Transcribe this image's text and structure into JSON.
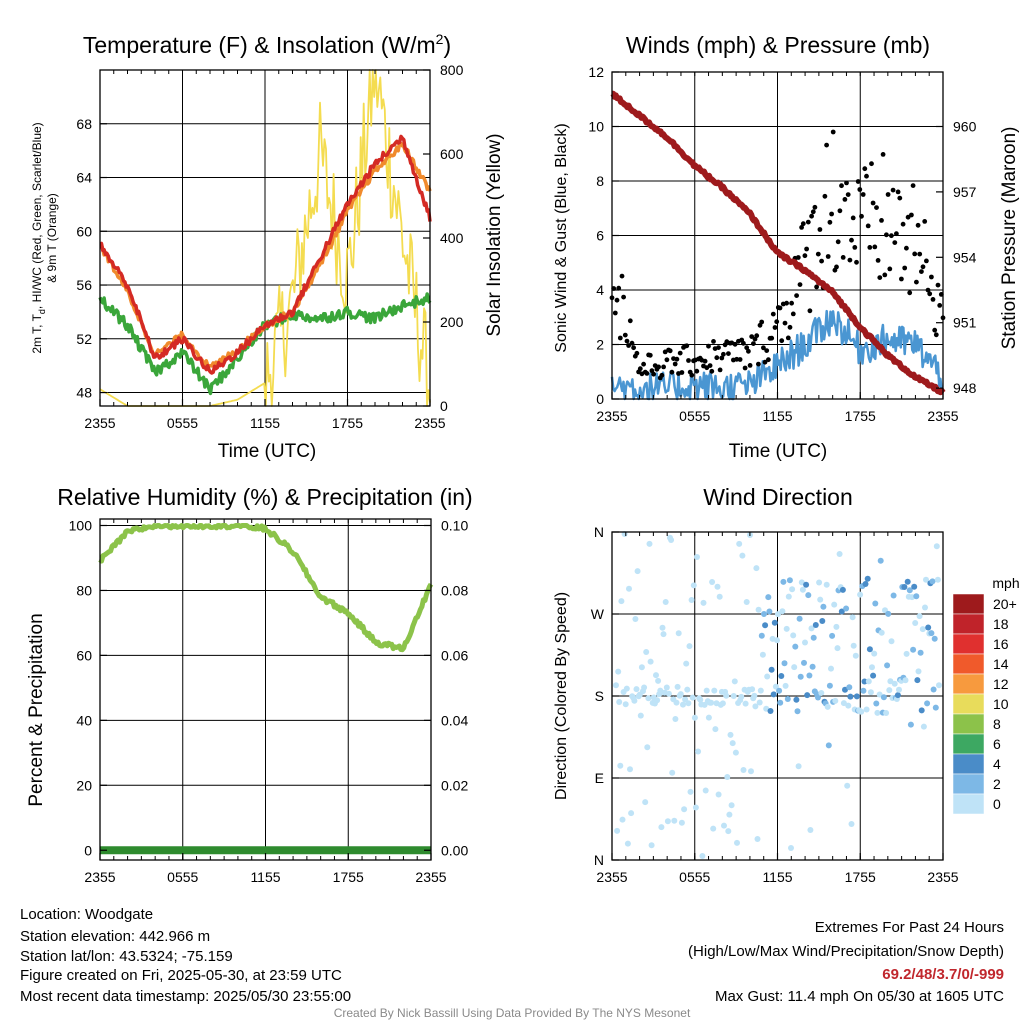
{
  "x_ticks": [
    "2355",
    "0555",
    "1155",
    "1755",
    "2355"
  ],
  "panel_temp": {
    "title": "Temperature (F) & Insolation (W/m",
    "title_sup": "2",
    "title_close": ")",
    "ylabel_line1": "2m T, T",
    "ylabel_sub": "d",
    "ylabel_line1b": ", HI/WC (Red, Green, Scarlet/Blue)",
    "ylabel_line2": "& 9m T (Orange)",
    "y2label": "Solar Insolation (Yellow)",
    "xlabel": "Time (UTC)",
    "y_ticks": [
      "48",
      "52",
      "56",
      "60",
      "64",
      "68"
    ],
    "y2_ticks": [
      "0",
      "200",
      "400",
      "600",
      "800"
    ]
  },
  "panel_wind": {
    "title": "Winds (mph) & Pressure (mb)",
    "ylabel": "Sonic Wind & Gust (Blue, Black)",
    "y2label": "Station Pressure (Maroon)",
    "xlabel": "Time (UTC)",
    "y_ticks": [
      "0",
      "2",
      "4",
      "6",
      "8",
      "10",
      "12"
    ],
    "y2_ticks": [
      "948",
      "951",
      "954",
      "957",
      "960"
    ]
  },
  "panel_rh": {
    "title": "Relative Humidity (%) & Precipitation (in)",
    "ylabel": "Percent & Precipitation",
    "y_ticks": [
      "0",
      "20",
      "40",
      "60",
      "80",
      "100"
    ],
    "y2_ticks": [
      "0.00",
      "0.02",
      "0.04",
      "0.06",
      "0.08",
      "0.10"
    ]
  },
  "panel_dir": {
    "title": "Wind Direction",
    "ylabel": "Direction (Colored By Speed)",
    "y_ticks": [
      "N",
      "E",
      "S",
      "W",
      "N"
    ],
    "legend_title": "mph",
    "legend_labels": [
      "20+",
      "18",
      "16",
      "14",
      "12",
      "10",
      "8",
      "6",
      "4",
      "2",
      "0"
    ],
    "legend_colors": [
      "#9e1a1c",
      "#c0232a",
      "#e0302f",
      "#f05a2b",
      "#f79a3e",
      "#e8dc5b",
      "#8cc24a",
      "#3da862",
      "#4a8cc8",
      "#7db8e6",
      "#bfe3f7"
    ]
  },
  "colors": {
    "temp": "#d42a24",
    "temp_9m": "#f08a2c",
    "dewpoint": "#3aa63a",
    "solar": "#f4dc50",
    "wind": "#4a96d2",
    "gust": "#000000",
    "pressure": "#9e1a1c",
    "rh": "#8cc34a",
    "precip": "#2e8b2e"
  },
  "chart_data": [
    {
      "type": "line",
      "title": "Temperature (F) & Insolation (W/m2)",
      "xlabel": "Time (UTC)",
      "ylabel": "2m T, Td, HI/WC (Red, Green, Scarlet/Blue) & 9m T (Orange)",
      "y2label": "Solar Insolation (Yellow)",
      "ylim": [
        47,
        72
      ],
      "y2lim": [
        0,
        800
      ],
      "x": [
        "2355",
        "0155",
        "0355",
        "0555",
        "0755",
        "0955",
        "1155",
        "1355",
        "1555",
        "1755",
        "1955",
        "2155",
        "2355"
      ],
      "series": [
        {
          "name": "2m T",
          "values": [
            59,
            56,
            50.5,
            52,
            49.5,
            51,
            53,
            54,
            58,
            62,
            65,
            67,
            61
          ]
        },
        {
          "name": "9m T",
          "values": [
            59,
            55.5,
            50.8,
            52.3,
            49.8,
            51.2,
            53,
            54,
            57.5,
            61.5,
            64.5,
            66.5,
            63
          ]
        },
        {
          "name": "Td",
          "values": [
            55,
            53,
            49.5,
            51,
            48.2,
            50.5,
            53,
            53.8,
            53.5,
            54,
            53.5,
            54.5,
            55
          ]
        },
        {
          "name": "Solar Insolation",
          "axis": "right",
          "values": [
            40,
            0,
            0,
            0,
            0,
            15,
            55,
            250,
            600,
            300,
            800,
            400,
            40
          ]
        }
      ]
    },
    {
      "type": "line",
      "title": "Winds (mph) & Pressure (mb)",
      "xlabel": "Time (UTC)",
      "ylabel": "Sonic Wind & Gust (Blue, Black)",
      "y2label": "Station Pressure (Maroon)",
      "ylim": [
        0,
        12
      ],
      "y2lim": [
        947.5,
        962.5
      ],
      "x": [
        "2355",
        "0155",
        "0355",
        "0555",
        "0755",
        "0955",
        "1155",
        "1355",
        "1555",
        "1755",
        "1955",
        "2155",
        "2355"
      ],
      "series": [
        {
          "name": "Sonic Wind",
          "values": [
            0.5,
            0.4,
            0.4,
            0.5,
            0.4,
            0.5,
            1.2,
            2.0,
            3.0,
            1.8,
            2.2,
            2.0,
            0.8
          ]
        },
        {
          "name": "Gust",
          "values": [
            4.5,
            1.0,
            1.2,
            1.3,
            1.5,
            1.5,
            2.5,
            4.5,
            7.0,
            5.5,
            6.0,
            5.0,
            3.0
          ]
        },
        {
          "name": "Station Pressure",
          "axis": "right",
          "values": [
            961.5,
            960.5,
            959.5,
            958.2,
            957.2,
            956.0,
            954.2,
            953.4,
            952.4,
            950.8,
            949.5,
            948.5,
            947.8
          ]
        }
      ]
    },
    {
      "type": "line",
      "title": "Relative Humidity (%) & Precipitation (in)",
      "ylabel": "Percent & Precipitation",
      "ylim": [
        0,
        100
      ],
      "y2lim": [
        0,
        0.1
      ],
      "x": [
        "2355",
        "0155",
        "0355",
        "0555",
        "0755",
        "0955",
        "1155",
        "1355",
        "1555",
        "1755",
        "1955",
        "2155",
        "2355"
      ],
      "series": [
        {
          "name": "Relative Humidity",
          "values": [
            89,
            98,
            100,
            100,
            100,
            100,
            99,
            92,
            78,
            73,
            64,
            62,
            82
          ]
        },
        {
          "name": "Precipitation",
          "axis": "right",
          "values": [
            0,
            0,
            0,
            0,
            0,
            0,
            0,
            0,
            0,
            0,
            0,
            0,
            0
          ]
        }
      ]
    },
    {
      "type": "scatter",
      "title": "Wind Direction",
      "ylabel": "Direction (Colored By Speed)",
      "y_categories": [
        "N",
        "E",
        "S",
        "W",
        "N"
      ],
      "ylim": [
        0,
        360
      ],
      "x_ticks": [
        "2355",
        "0555",
        "1155",
        "1755",
        "2355"
      ],
      "legend_title": "mph",
      "legend": [
        "20+",
        "18",
        "16",
        "14",
        "12",
        "10",
        "8",
        "6",
        "4",
        "2",
        "0"
      ],
      "points_summary": [
        {
          "x": "2355-0555",
          "direction_range": [
            0,
            360
          ],
          "speed": "0-2"
        },
        {
          "x": "0555-1155",
          "direction_range": [
            0,
            360
          ],
          "speed": "0-2"
        },
        {
          "x": "1155-1755",
          "direction_range": [
            150,
            300
          ],
          "speed": "2-4"
        },
        {
          "x": "1755-2355",
          "direction_range": [
            150,
            320
          ],
          "speed": "2-4"
        }
      ]
    }
  ],
  "footer": {
    "location": "Location: Woodgate",
    "elevation": "Station elevation: 442.966 m",
    "latlon": "Station lat/lon: 43.5324; -75.159",
    "created": "Figure created on Fri, 2025-05-30, at 23:59 UTC",
    "recent": "Most recent data timestamp: 2025/05/30 23:55:00",
    "extremes_title": "Extremes For Past 24 Hours",
    "extremes_sub": "(High/Low/Max Wind/Precipitation/Snow Depth)",
    "extremes_values": "69.2/48/3.7/0/-999",
    "max_gust": "Max Gust: 11.4 mph On 05/30 at 1605 UTC",
    "credit": "Created By Nick Bassill Using Data Provided By The NYS Mesonet"
  }
}
